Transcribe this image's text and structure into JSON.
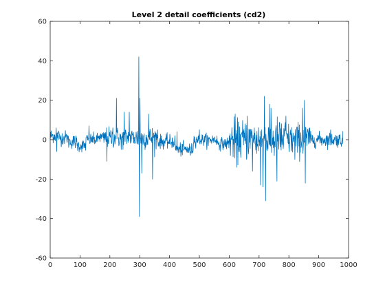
{
  "chart_data": {
    "type": "line",
    "title": "Level 2 detail coefficients (cd2)",
    "xlabel": "",
    "ylabel": "",
    "xlim": [
      0,
      1000
    ],
    "ylim": [
      -60,
      60
    ],
    "xticks": [
      0,
      100,
      200,
      300,
      400,
      500,
      600,
      700,
      800,
      900,
      1000
    ],
    "yticks": [
      -60,
      -40,
      -20,
      0,
      20,
      40,
      60
    ],
    "grid": false,
    "legend": "none",
    "n_points": 982,
    "series": [
      {
        "color": "#0072BD",
        "key_points": [
          {
            "x": 0,
            "y": 0
          },
          {
            "x": 20,
            "y": 6
          },
          {
            "x": 22,
            "y": -6
          },
          {
            "x": 50,
            "y": 2
          },
          {
            "x": 90,
            "y": -3
          },
          {
            "x": 100,
            "y": -5
          },
          {
            "x": 130,
            "y": 7
          },
          {
            "x": 165,
            "y": 2
          },
          {
            "x": 190,
            "y": -11
          },
          {
            "x": 210,
            "y": 6
          },
          {
            "x": 222,
            "y": 21
          },
          {
            "x": 238,
            "y": -5
          },
          {
            "x": 248,
            "y": 14
          },
          {
            "x": 265,
            "y": 14
          },
          {
            "x": 297,
            "y": 42
          },
          {
            "x": 299,
            "y": -39
          },
          {
            "x": 301,
            "y": 21
          },
          {
            "x": 307,
            "y": -17
          },
          {
            "x": 330,
            "y": 13
          },
          {
            "x": 343,
            "y": -20
          },
          {
            "x": 360,
            "y": 5
          },
          {
            "x": 400,
            "y": -2
          },
          {
            "x": 425,
            "y": 4
          },
          {
            "x": 470,
            "y": -8
          },
          {
            "x": 500,
            "y": 5
          },
          {
            "x": 530,
            "y": -3
          },
          {
            "x": 565,
            "y": -1
          },
          {
            "x": 600,
            "y": 2
          },
          {
            "x": 620,
            "y": 13
          },
          {
            "x": 625,
            "y": -14
          },
          {
            "x": 660,
            "y": 12
          },
          {
            "x": 678,
            "y": -16
          },
          {
            "x": 705,
            "y": -23
          },
          {
            "x": 713,
            "y": -24
          },
          {
            "x": 718,
            "y": 22
          },
          {
            "x": 722,
            "y": -31
          },
          {
            "x": 740,
            "y": 16
          },
          {
            "x": 760,
            "y": -21
          },
          {
            "x": 790,
            "y": 12
          },
          {
            "x": 820,
            "y": -10
          },
          {
            "x": 845,
            "y": 16
          },
          {
            "x": 852,
            "y": 20
          },
          {
            "x": 855,
            "y": -22
          },
          {
            "x": 870,
            "y": 6
          },
          {
            "x": 900,
            "y": 2
          },
          {
            "x": 940,
            "y": 5
          },
          {
            "x": 980,
            "y": -2
          }
        ]
      }
    ]
  }
}
